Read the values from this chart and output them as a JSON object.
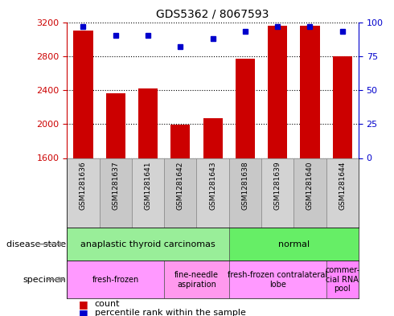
{
  "title": "GDS5362 / 8067593",
  "samples": [
    "GSM1281636",
    "GSM1281637",
    "GSM1281641",
    "GSM1281642",
    "GSM1281643",
    "GSM1281638",
    "GSM1281639",
    "GSM1281640",
    "GSM1281644"
  ],
  "counts": [
    3100,
    2360,
    2420,
    1990,
    2070,
    2770,
    3160,
    3160,
    2800
  ],
  "percentiles": [
    97,
    90,
    90,
    82,
    88,
    93,
    97,
    97,
    93
  ],
  "ylim_left": [
    1600,
    3200
  ],
  "ylim_right": [
    0,
    100
  ],
  "yticks_left": [
    1600,
    2000,
    2400,
    2800,
    3200
  ],
  "yticks_right": [
    0,
    25,
    50,
    75,
    100
  ],
  "disease_groups": [
    {
      "label": "anaplastic thyroid carcinomas",
      "color": "#99EE99",
      "start": 0,
      "end": 5
    },
    {
      "label": "normal",
      "color": "#66EE66",
      "start": 5,
      "end": 9
    }
  ],
  "specimen_groups": [
    {
      "label": "fresh-frozen",
      "color": "#FF99FF",
      "start": 0,
      "end": 3
    },
    {
      "label": "fine-needle\naspiration",
      "color": "#FF99EE",
      "start": 3,
      "end": 5
    },
    {
      "label": "fresh-frozen contralateral\nlobe",
      "color": "#FF99FF",
      "start": 5,
      "end": 8
    },
    {
      "label": "commer-\ncial RNA\npool",
      "color": "#FF88FF",
      "start": 8,
      "end": 9
    }
  ],
  "bar_color": "#CC0000",
  "dot_color": "#0000CC",
  "left_tick_color": "#CC0000",
  "right_tick_color": "#0000CC",
  "sample_box_colors": [
    "#D3D3D3",
    "#C8C8C8",
    "#D3D3D3",
    "#C8C8C8",
    "#D3D3D3",
    "#C8C8C8",
    "#D3D3D3",
    "#C8C8C8",
    "#D3D3D3"
  ]
}
